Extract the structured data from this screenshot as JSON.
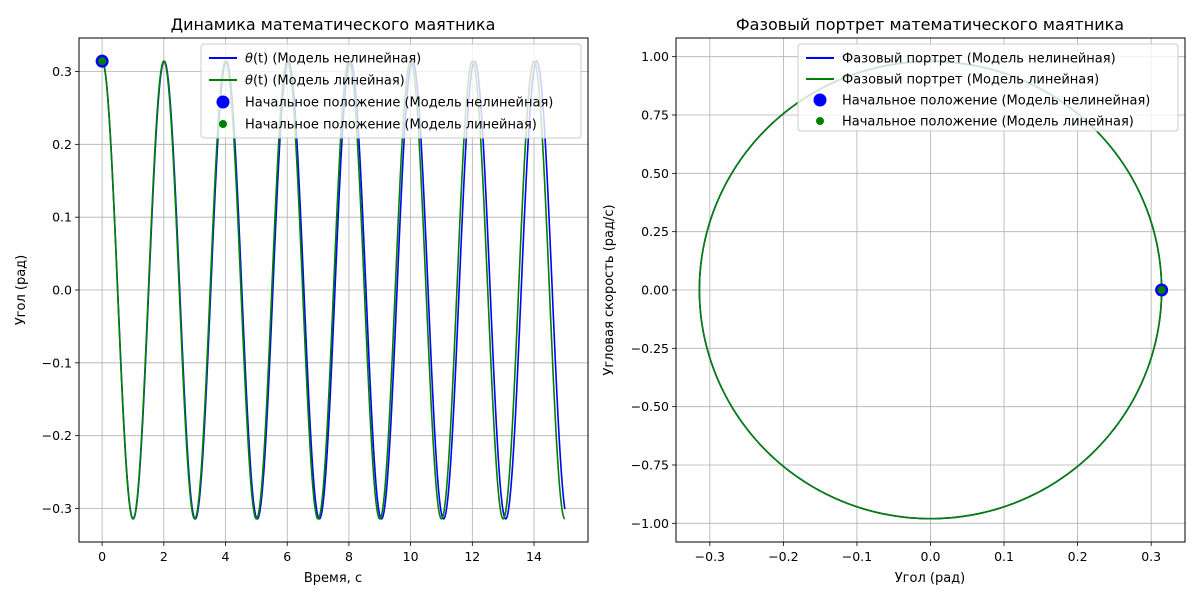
{
  "chart_data": [
    {
      "type": "line",
      "title": "Динамика математического маятника",
      "xlabel": "Время, с",
      "ylabel": "Угол (рад)",
      "xlim": [
        -0.75,
        15.75
      ],
      "ylim": [
        -0.346,
        0.346
      ],
      "xticks": [
        0,
        2,
        4,
        6,
        8,
        10,
        12,
        14
      ],
      "yticks": [
        -0.3,
        -0.2,
        -0.1,
        0.0,
        0.1,
        0.2,
        0.3
      ],
      "xtick_labels": [
        "0",
        "2",
        "4",
        "6",
        "8",
        "10",
        "12",
        "14"
      ],
      "ytick_labels": [
        "−0.3",
        "−0.2",
        "−0.1",
        "0.0",
        "0.1",
        "0.2",
        "0.3"
      ],
      "grid": true,
      "legend_position": "upper right",
      "theta0": 0.3142,
      "t_range": [
        0,
        15
      ],
      "series": [
        {
          "name_prefix": "θ",
          "name_var": "(t)",
          "name": " (Модель нелинейная)",
          "color": "#0000ff",
          "kind": "line",
          "period": 2.0125
        },
        {
          "name_prefix": "θ",
          "name_var": "(t)",
          "name": " (Модель линейная)",
          "color": "#008000",
          "kind": "line",
          "period": 2.0
        }
      ],
      "markers": [
        {
          "name": "Начальное положение (Модель нелинейная)",
          "color": "#0000ff",
          "x": 0,
          "y": 0.3142,
          "size": "large"
        },
        {
          "name": "Начальное положение (Модель линейная)",
          "color": "#008000",
          "x": 0,
          "y": 0.3142,
          "size": "small"
        }
      ]
    },
    {
      "type": "line",
      "title": "Фазовый портрет математического маятника",
      "xlabel": "Угол (рад)",
      "ylabel": "Угловая скорость (рад/с)",
      "xlim": [
        -0.346,
        0.346
      ],
      "ylim": [
        -1.08,
        1.08
      ],
      "xticks": [
        -0.3,
        -0.2,
        -0.1,
        0.0,
        0.1,
        0.2,
        0.3
      ],
      "yticks": [
        -1.0,
        -0.75,
        -0.5,
        -0.25,
        0.0,
        0.25,
        0.5,
        0.75,
        1.0
      ],
      "xtick_labels": [
        "−0.3",
        "−0.2",
        "−0.1",
        "0.0",
        "0.1",
        "0.2",
        "0.3"
      ],
      "ytick_labels": [
        "−1.00",
        "−0.75",
        "−0.50",
        "−0.25",
        "0.00",
        "0.25",
        "0.50",
        "0.75",
        "1.00"
      ],
      "grid": true,
      "legend_position": "upper right",
      "series": [
        {
          "name": "Фазовый портрет (Модель нелинейная)",
          "color": "#0000ff",
          "kind": "line",
          "amp_angle": 0.3142,
          "amp_velocity": 0.98
        },
        {
          "name": "Фазовый портрет (Модель линейная)",
          "color": "#008000",
          "kind": "line",
          "amp_angle": 0.3142,
          "amp_velocity": 0.98
        }
      ],
      "markers": [
        {
          "name": "Начальное положение (Модель нелинейная)",
          "color": "#0000ff",
          "x": 0.3142,
          "y": 0.0,
          "size": "large"
        },
        {
          "name": "Начальное положение (Модель линейная)",
          "color": "#008000",
          "x": 0.3142,
          "y": 0.0,
          "size": "small"
        }
      ]
    }
  ]
}
